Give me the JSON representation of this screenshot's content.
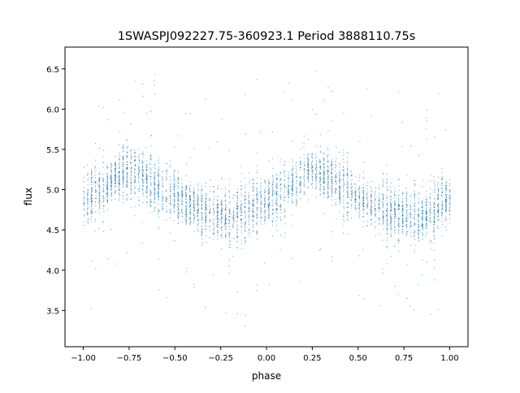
{
  "chart_data": {
    "type": "scatter",
    "title": "1SWASPJ092227.75-360923.1 Period 3888110.75s",
    "xlabel": "phase",
    "ylabel": "flux",
    "xlim": [
      -1.1,
      1.1
    ],
    "ylim": [
      3.05,
      6.77
    ],
    "xticks": [
      -1.0,
      -0.75,
      -0.5,
      -0.25,
      0.0,
      0.25,
      0.5,
      0.75,
      1.0
    ],
    "xtick_labels": [
      "−1.00",
      "−0.75",
      "−0.50",
      "−0.25",
      "0.00",
      "0.25",
      "0.50",
      "0.75",
      "1.00"
    ],
    "yticks": [
      3.5,
      4.0,
      4.5,
      5.0,
      5.5,
      6.0,
      6.5
    ],
    "ytick_labels": [
      "3.5",
      "4.0",
      "4.5",
      "5.0",
      "5.5",
      "6.0",
      "6.5"
    ],
    "grid": false,
    "marker_color": "#1f77b4",
    "series": [
      {
        "description_of_values": "binned mean flux vs phase (phase folded, repeated over -1..0 and 0..1)",
        "phase": [
          0.0,
          0.05,
          0.1,
          0.15,
          0.2,
          0.25,
          0.3,
          0.35,
          0.4,
          0.45,
          0.5,
          0.55,
          0.6,
          0.65,
          0.7,
          0.75,
          0.8,
          0.85,
          0.9,
          0.95,
          1.0
        ],
        "mean_flux": [
          4.85,
          4.95,
          5.0,
          5.1,
          5.2,
          5.25,
          5.2,
          5.15,
          5.05,
          5.0,
          4.9,
          4.85,
          4.8,
          4.75,
          4.72,
          4.7,
          4.68,
          4.68,
          4.75,
          4.85,
          4.85
        ],
        "flux_spread": 0.3
      }
    ]
  }
}
